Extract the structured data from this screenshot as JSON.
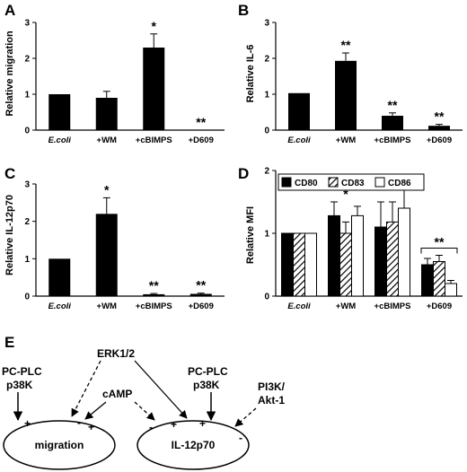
{
  "chart_data": [
    {
      "panel": "A",
      "type": "bar",
      "ylabel": "Relative migration",
      "ylim": [
        0,
        3
      ],
      "yticks": [
        0,
        1,
        2,
        3
      ],
      "categories": [
        "E.coli",
        "+WM",
        "+cBIMPS",
        "+D609"
      ],
      "values": [
        1.0,
        0.9,
        2.3,
        0.0
      ],
      "errors": [
        0,
        0.18,
        0.38,
        0
      ],
      "annotations": [
        "",
        "",
        "*",
        "**"
      ]
    },
    {
      "panel": "B",
      "type": "bar",
      "ylabel": "Relative IL-6",
      "ylim": [
        0,
        3
      ],
      "yticks": [
        0,
        1,
        2,
        3
      ],
      "categories": [
        "E.coli",
        "+WM",
        "+cBIMPS",
        "+D609"
      ],
      "values": [
        1.03,
        1.93,
        0.4,
        0.12
      ],
      "errors": [
        0,
        0.22,
        0.08,
        0.04
      ],
      "annotations": [
        "",
        "**",
        "**",
        "**"
      ]
    },
    {
      "panel": "C",
      "type": "bar",
      "ylabel": "Relative IL-12p70",
      "ylim": [
        0,
        3
      ],
      "yticks": [
        0,
        1,
        2,
        3
      ],
      "categories": [
        "E.coli",
        "+WM",
        "+cBIMPS",
        "+D609"
      ],
      "values": [
        1.0,
        2.2,
        0.05,
        0.06
      ],
      "errors": [
        0,
        0.43,
        0.02,
        0.02
      ],
      "annotations": [
        "",
        "*",
        "**",
        "**"
      ]
    },
    {
      "panel": "D",
      "type": "bar",
      "ylabel": "Relative MFI",
      "ylim": [
        0,
        2
      ],
      "yticks": [
        0,
        1,
        2
      ],
      "categories": [
        "E.coli",
        "+WM",
        "+cBIMPS",
        "+D609"
      ],
      "series": [
        {
          "name": "CD80",
          "values": [
            1.0,
            1.28,
            1.1,
            0.5
          ],
          "errors": [
            0,
            0.22,
            0.4,
            0.1
          ]
        },
        {
          "name": "CD83",
          "values": [
            1.0,
            1.0,
            1.18,
            0.55
          ],
          "errors": [
            0,
            0.18,
            0.32,
            0.1
          ]
        },
        {
          "name": "CD86",
          "values": [
            1.0,
            1.28,
            1.4,
            0.2
          ],
          "errors": [
            0,
            0.15,
            0.3,
            0.05
          ]
        }
      ],
      "annotations": [
        "",
        "*",
        "",
        "**"
      ],
      "legend": "top"
    }
  ],
  "diagram": {
    "panel": "E",
    "nodes": {
      "migration": "migration",
      "il12": "IL-12p70"
    },
    "regulators": {
      "pcplc_left": "PC-PLC",
      "p38k_left": "p38K",
      "erk": "ERK1/2",
      "camp": "cAMP",
      "pcplc_right": "PC-PLC",
      "p38k_right": "p38K",
      "pi3k": "PI3K/",
      "akt": "Akt-1"
    },
    "signs": {
      "plus": "+",
      "minus": "-"
    }
  }
}
